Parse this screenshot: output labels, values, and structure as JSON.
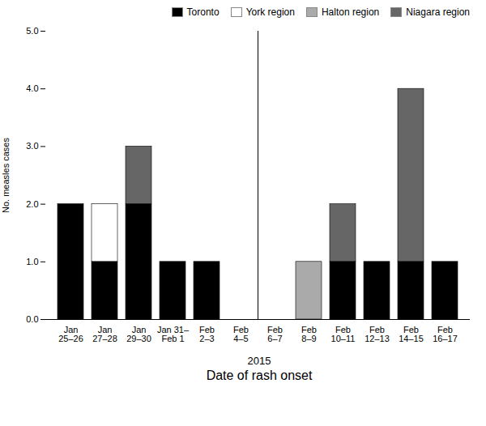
{
  "chart_data": {
    "type": "bar",
    "stacked": true,
    "categories": [
      "Jan\n25–26",
      "Jan\n27–28",
      "Jan\n29–30",
      "Jan 31–\nFeb 1",
      "Feb\n2–3",
      "Feb\n4–5",
      "Feb\n6–7",
      "Feb\n8–9",
      "Feb\n10–11",
      "Feb\n12–13",
      "Feb\n14–15",
      "Feb\n16–17"
    ],
    "series": [
      {
        "name": "Toronto",
        "color": "#000000",
        "values": [
          2,
          1,
          2,
          1,
          1,
          0,
          0,
          0,
          1,
          1,
          1,
          1
        ]
      },
      {
        "name": "York region",
        "color": "#ffffff",
        "values": [
          0,
          1,
          0,
          0,
          0,
          0,
          0,
          0,
          0,
          0,
          0,
          0
        ]
      },
      {
        "name": "Halton region",
        "color": "#aaaaaa",
        "values": [
          0,
          0,
          0,
          0,
          0,
          0,
          0,
          1,
          0,
          0,
          0,
          0
        ]
      },
      {
        "name": "Niagara region",
        "color": "#666666",
        "values": [
          0,
          0,
          1,
          0,
          0,
          0,
          0,
          0,
          1,
          0,
          3,
          0
        ]
      }
    ],
    "ylabel": "No. measles cases",
    "xlabel": "Date of rash onset",
    "annotations": [
      "2015"
    ],
    "ylim": [
      0,
      5
    ],
    "yticks": [
      0,
      1,
      2,
      3,
      4,
      5
    ],
    "grid": false,
    "legend": "upper right"
  }
}
